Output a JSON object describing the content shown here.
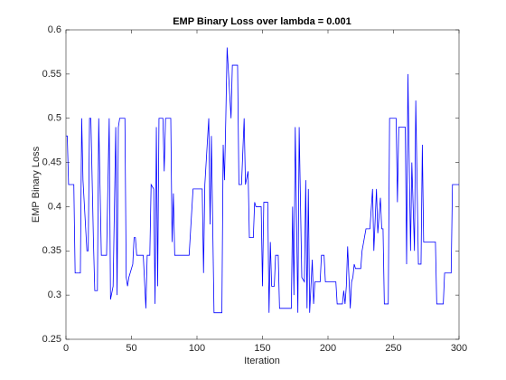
{
  "chart_data": {
    "type": "line",
    "title": "EMP Binary Loss over lambda = 0.001",
    "xlabel": "Iteration",
    "ylabel": "EMP Binary Loss",
    "xlim": [
      0,
      300
    ],
    "ylim": [
      0.25,
      0.6
    ],
    "xticks": [
      0,
      50,
      100,
      150,
      200,
      250,
      300
    ],
    "yticks": [
      0.25,
      0.3,
      0.35,
      0.4,
      0.45,
      0.5,
      0.55,
      0.6
    ],
    "grid": false,
    "series": [
      {
        "name": "EMP Binary Loss",
        "color": "#0000ff",
        "x": [
          0,
          1,
          2,
          6,
          7,
          11,
          12,
          13,
          16,
          17,
          18,
          19,
          21,
          22,
          24,
          25,
          27,
          31,
          33,
          34,
          36,
          38,
          39,
          40,
          41,
          45,
          46,
          47,
          48,
          51,
          52,
          53,
          54,
          59,
          61,
          62,
          64,
          65,
          67,
          68,
          69,
          70,
          71,
          74,
          75,
          76,
          80,
          81,
          82,
          83,
          94,
          97,
          100,
          103,
          104,
          105,
          106,
          109,
          110,
          111,
          113,
          119,
          120,
          121,
          122,
          123,
          126,
          127,
          131,
          132,
          134,
          136,
          137,
          139,
          140,
          143,
          144,
          145,
          149,
          150,
          151,
          154,
          155,
          156,
          157,
          159,
          160,
          162,
          163,
          172,
          173,
          174,
          175,
          177,
          178,
          180,
          182,
          183,
          184,
          185,
          186,
          188,
          189,
          190,
          194,
          195,
          197,
          198,
          206,
          207,
          211,
          212,
          213,
          214,
          215,
          217,
          218,
          219,
          220,
          221,
          225,
          226,
          229,
          232,
          234,
          235,
          237,
          238,
          240,
          241,
          242,
          243,
          246,
          247,
          252,
          253,
          254,
          259,
          260,
          261,
          263,
          264,
          266,
          267,
          269,
          271,
          272,
          273,
          282,
          283,
          288,
          289,
          294,
          295,
          300
        ],
        "values": [
          0.48,
          0.48,
          0.425,
          0.425,
          0.325,
          0.325,
          0.5,
          0.43,
          0.35,
          0.35,
          0.5,
          0.5,
          0.36,
          0.305,
          0.305,
          0.5,
          0.345,
          0.345,
          0.5,
          0.295,
          0.31,
          0.49,
          0.3,
          0.49,
          0.5,
          0.5,
          0.32,
          0.31,
          0.32,
          0.335,
          0.365,
          0.365,
          0.345,
          0.345,
          0.285,
          0.345,
          0.345,
          0.425,
          0.42,
          0.29,
          0.49,
          0.31,
          0.5,
          0.5,
          0.44,
          0.5,
          0.5,
          0.36,
          0.415,
          0.345,
          0.345,
          0.42,
          0.42,
          0.42,
          0.42,
          0.325,
          0.425,
          0.5,
          0.38,
          0.48,
          0.28,
          0.28,
          0.47,
          0.43,
          0.5,
          0.58,
          0.5,
          0.56,
          0.56,
          0.425,
          0.425,
          0.5,
          0.425,
          0.44,
          0.365,
          0.365,
          0.405,
          0.4,
          0.4,
          0.31,
          0.405,
          0.405,
          0.28,
          0.36,
          0.31,
          0.31,
          0.345,
          0.345,
          0.285,
          0.285,
          0.4,
          0.3,
          0.49,
          0.28,
          0.49,
          0.32,
          0.315,
          0.43,
          0.285,
          0.42,
          0.28,
          0.34,
          0.29,
          0.315,
          0.315,
          0.345,
          0.345,
          0.315,
          0.315,
          0.29,
          0.29,
          0.305,
          0.29,
          0.31,
          0.355,
          0.285,
          0.315,
          0.32,
          0.335,
          0.33,
          0.33,
          0.35,
          0.375,
          0.375,
          0.42,
          0.35,
          0.42,
          0.37,
          0.41,
          0.375,
          0.375,
          0.29,
          0.29,
          0.5,
          0.5,
          0.405,
          0.49,
          0.49,
          0.335,
          0.55,
          0.35,
          0.45,
          0.35,
          0.52,
          0.335,
          0.335,
          0.47,
          0.36,
          0.36,
          0.29,
          0.29,
          0.325,
          0.325,
          0.425,
          0.425
        ]
      }
    ]
  }
}
